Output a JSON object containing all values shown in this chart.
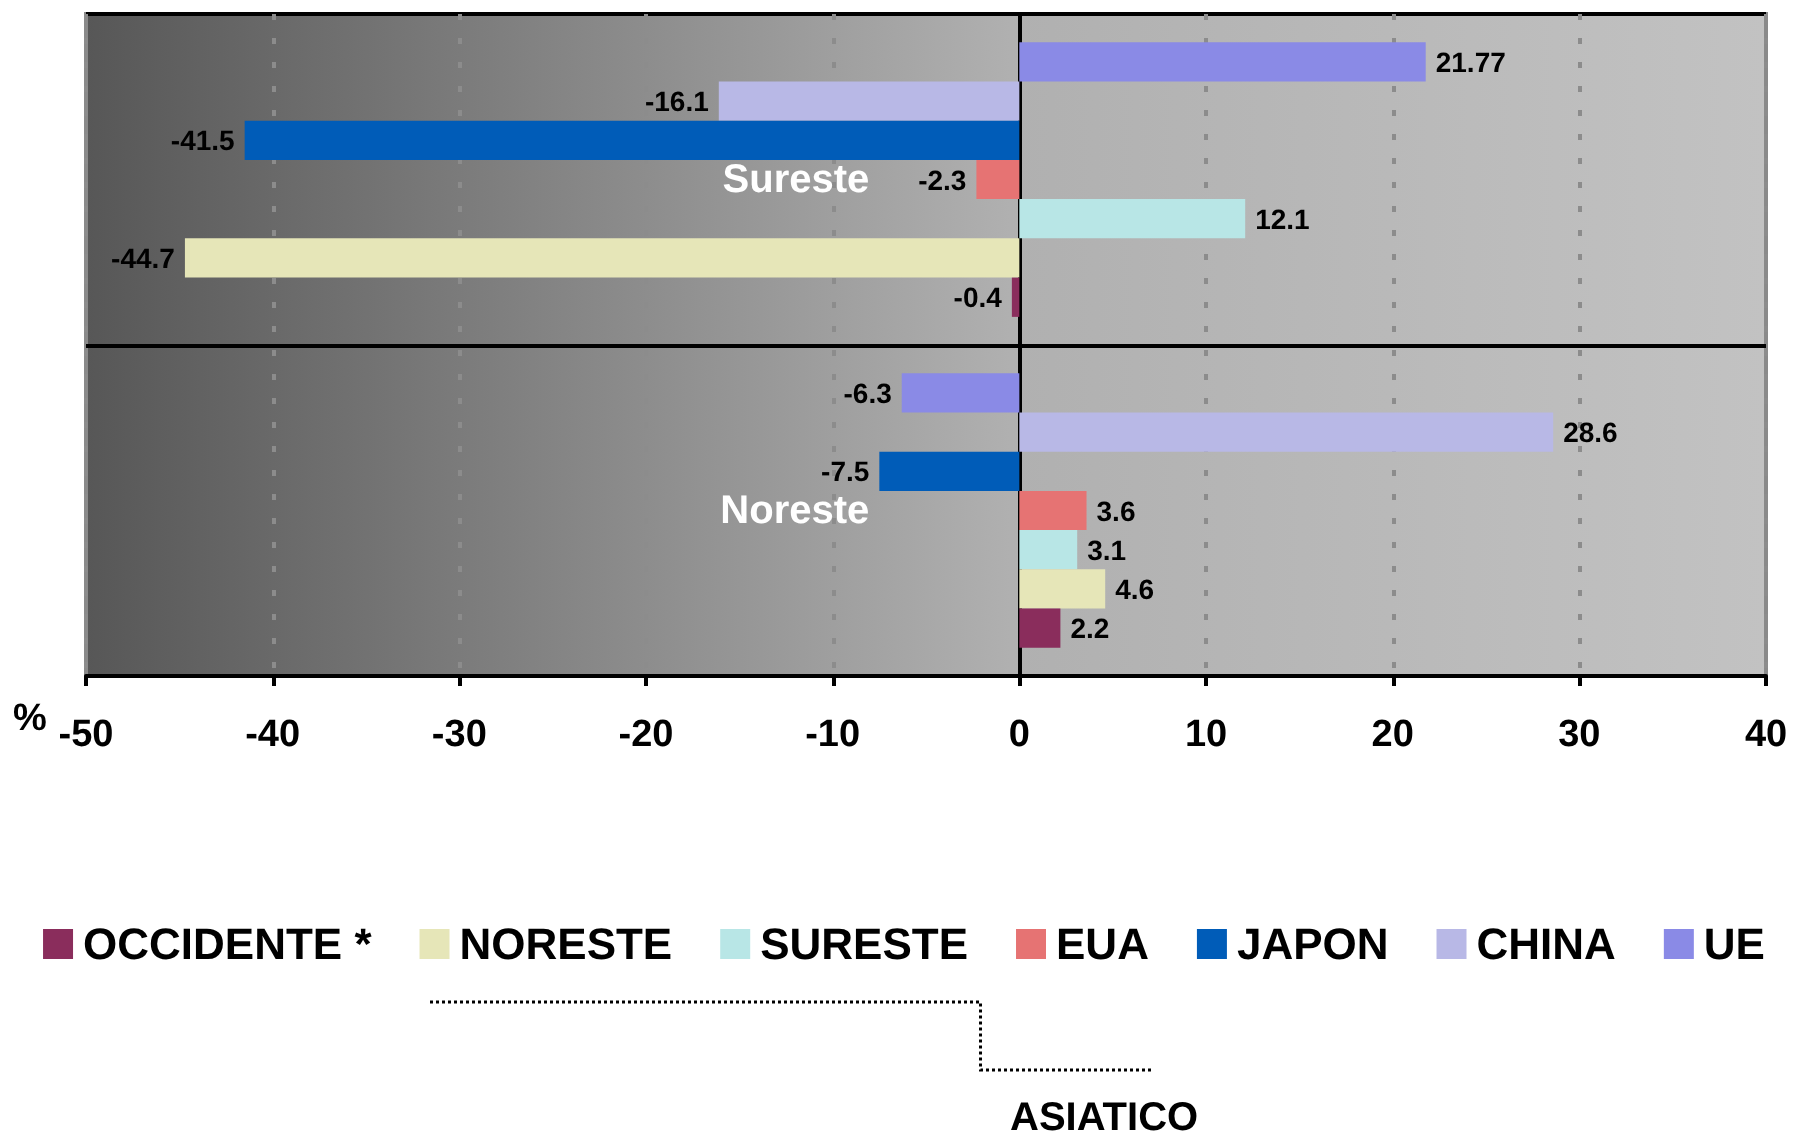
{
  "chart_data": {
    "type": "bar",
    "orientation": "horizontal",
    "categories": [
      "Sureste",
      "Noreste"
    ],
    "xlabel": "%",
    "xlim": [
      -50,
      40
    ],
    "xticks": [
      -50,
      -40,
      -30,
      -20,
      -10,
      0,
      10,
      20,
      30,
      40
    ],
    "grid": true,
    "legend": "bottom",
    "data_labels": true,
    "annotations": [
      "ASIATICO"
    ],
    "series": [
      {
        "name": "OCCIDENTE *",
        "color": "#8a2d5c",
        "values": [
          -0.4,
          2.2
        ]
      },
      {
        "name": "NORESTE",
        "color": "#e6e6b8",
        "values": [
          -44.7,
          4.6
        ]
      },
      {
        "name": "SURESTE",
        "color": "#b8e6e6",
        "values": [
          12.1,
          3.1
        ]
      },
      {
        "name": "EUA",
        "color": "#e67373",
        "values": [
          -2.3,
          3.6
        ]
      },
      {
        "name": "JAPON",
        "color": "#005cb8",
        "values": [
          -41.5,
          -7.5
        ]
      },
      {
        "name": "CHINA",
        "color": "#b8b8e6",
        "values": [
          -16.1,
          28.6
        ]
      },
      {
        "name": "UE",
        "color": "#8a8ae6",
        "values": [
          21.77,
          -6.3
        ]
      }
    ]
  }
}
